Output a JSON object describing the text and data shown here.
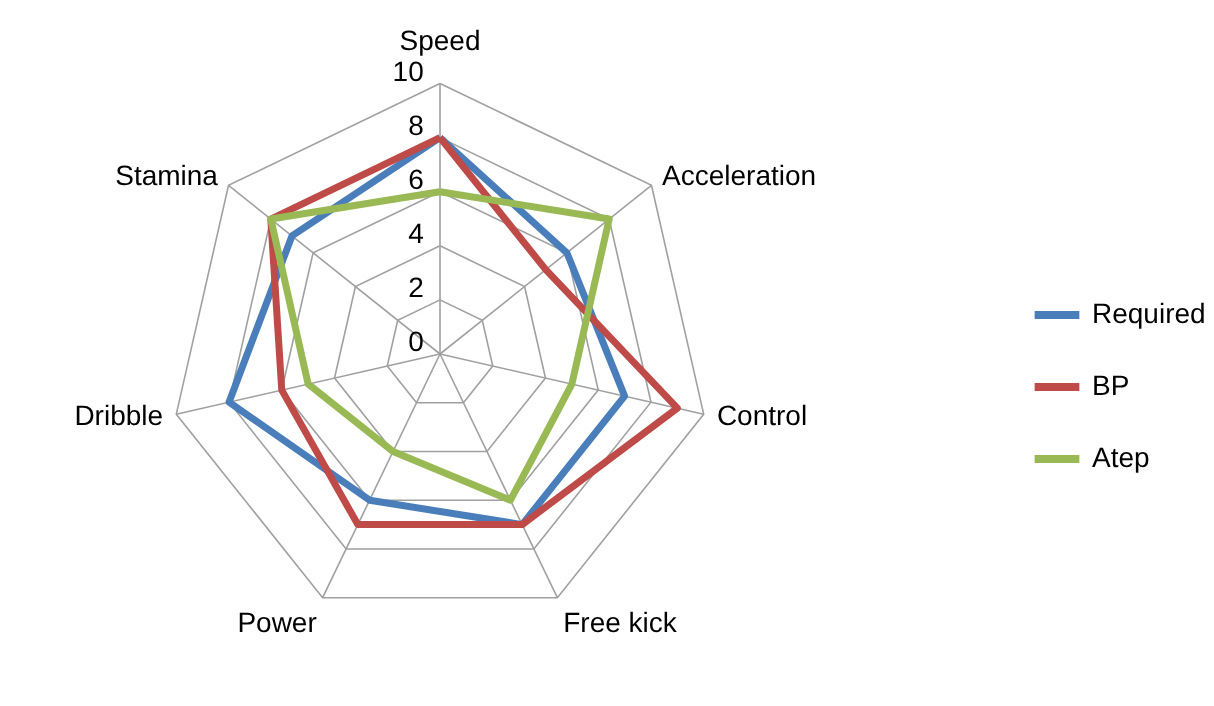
{
  "chart_data": {
    "type": "radar",
    "categories": [
      "Speed",
      "Acceleration",
      "Control",
      "Free kick",
      "Power",
      "Dribble",
      "Stamina"
    ],
    "series": [
      {
        "name": "Required",
        "color": "#4a7ebb",
        "values": [
          8,
          6,
          7,
          7,
          6,
          8,
          7
        ]
      },
      {
        "name": "BP",
        "color": "#be4b48",
        "values": [
          8,
          5,
          9,
          7,
          7,
          6,
          8
        ]
      },
      {
        "name": "Atep",
        "color": "#98b954",
        "values": [
          6,
          8,
          5,
          6,
          4,
          5,
          8
        ]
      }
    ],
    "ylim": [
      0,
      10
    ],
    "yticks": [
      0,
      2,
      4,
      6,
      8,
      10
    ],
    "grid": true,
    "legend": "right",
    "marker": "none",
    "line_style": "solid"
  }
}
